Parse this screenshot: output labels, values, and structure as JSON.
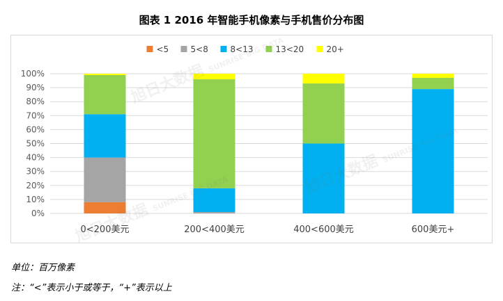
{
  "chart_data": {
    "type": "bar",
    "stacked": true,
    "title": "图表 1    2016 年智能手机像素与手机售价分布图",
    "categories": [
      "0<200美元",
      "200<400美元",
      "400<600美元",
      "600美元+"
    ],
    "series": [
      {
        "name": "<5",
        "color": "#ED7D31",
        "values": [
          8,
          0,
          0,
          0
        ]
      },
      {
        "name": "5<8",
        "color": "#A5A5A5",
        "values": [
          32,
          1,
          0,
          0
        ]
      },
      {
        "name": "8<13",
        "color": "#00B0F0",
        "values": [
          31,
          17,
          50,
          89
        ]
      },
      {
        "name": "13<20",
        "color": "#92D050",
        "values": [
          28,
          78,
          43,
          8
        ]
      },
      {
        "name": "20+",
        "color": "#FFFF00",
        "values": [
          1,
          4,
          7,
          3
        ]
      }
    ],
    "ylim": [
      0,
      100
    ],
    "yticks": [
      "0%",
      "10%",
      "20%",
      "30%",
      "40%",
      "50%",
      "60%",
      "70%",
      "80%",
      "90%",
      "100%"
    ],
    "grid": true,
    "legend": "top-center"
  },
  "notes": {
    "unit": "单位：百万像素",
    "legend": "注：“<”表示小于或等于，“+”表示以上"
  },
  "watermark": {
    "name": "旭日大数据",
    "english": "SUNRISE BIG DATA"
  }
}
